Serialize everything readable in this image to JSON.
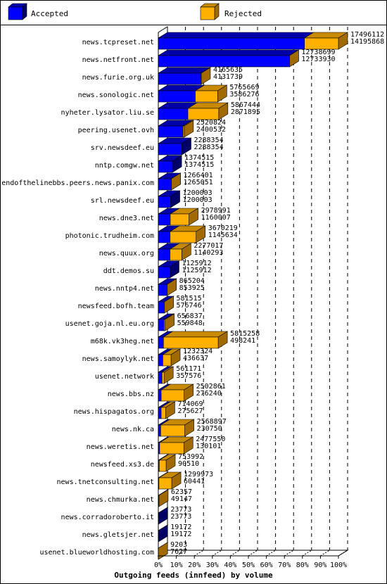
{
  "chart_data": {
    "type": "bar",
    "title": "Outgoing feeds (innfeed) by volume",
    "legend": {
      "placement": "top",
      "entries": [
        {
          "name": "Accepted",
          "color": "#0000ff"
        },
        {
          "name": "Rejected",
          "color": "#ffb000"
        }
      ]
    },
    "x_axis": {
      "range_percent": [
        0,
        100
      ],
      "ticks": [
        "0%",
        "10%",
        "20%",
        "30%",
        "40%",
        "50%",
        "60%",
        "70%",
        "80%",
        "90%",
        "100%"
      ],
      "grid": true
    },
    "series": [
      {
        "name": "Accepted",
        "color": "#0000ff"
      },
      {
        "name": "Rejected",
        "color": "#ffb000"
      }
    ],
    "rows": [
      {
        "site": "news.tcpreset.net",
        "total": 17496112,
        "accepted": 14195868
      },
      {
        "site": "news.netfront.net",
        "total": 12738699,
        "accepted": 12733930
      },
      {
        "site": "news.furie.org.uk",
        "total": 4165635,
        "accepted": 4131739
      },
      {
        "site": "news.sonologic.net",
        "total": 5765669,
        "accepted": 3586276
      },
      {
        "site": "nyheter.lysator.liu.se",
        "total": 5867444,
        "accepted": 2871895
      },
      {
        "site": "peering.usenet.ovh",
        "total": 2520824,
        "accepted": 2400532
      },
      {
        "site": "srv.newsdeef.eu",
        "total": 2288354,
        "accepted": 2288354
      },
      {
        "site": "nntp.comgw.net",
        "total": 1374515,
        "accepted": 1374515
      },
      {
        "site": "endofthelinebbs.peers.news.panix.com",
        "total": 1266401,
        "accepted": 1265051
      },
      {
        "site": "srl.newsdeef.eu",
        "total": 1200003,
        "accepted": 1200003
      },
      {
        "site": "news.dne3.net",
        "total": 2978991,
        "accepted": 1160007
      },
      {
        "site": "photonic.trudheim.com",
        "total": 3670219,
        "accepted": 1145634
      },
      {
        "site": "news.quux.org",
        "total": 2277017,
        "accepted": 1140293
      },
      {
        "site": "ddt.demos.su",
        "total": 1125912,
        "accepted": 1125912
      },
      {
        "site": "news.nntp4.net",
        "total": 865204,
        "accepted": 853925
      },
      {
        "site": "newsfeed.bofh.team",
        "total": 581515,
        "accepted": 576746
      },
      {
        "site": "usenet.goja.nl.eu.org",
        "total": 656837,
        "accepted": 559848
      },
      {
        "site": "m68k.vk3heg.net",
        "total": 5815258,
        "accepted": 498241
      },
      {
        "site": "news.samoylyk.net",
        "total": 1232324,
        "accepted": 436637
      },
      {
        "site": "usenet.network",
        "total": 561171,
        "accepted": 357576
      },
      {
        "site": "news.bbs.nz",
        "total": 2502861,
        "accepted": 276240
      },
      {
        "site": "news.hispagatos.org",
        "total": 714069,
        "accepted": 275627
      },
      {
        "site": "news.nk.ca",
        "total": 2568897,
        "accepted": 230750
      },
      {
        "site": "news.weretis.net",
        "total": 2477550,
        "accepted": 130101
      },
      {
        "site": "newsfeed.xs3.de",
        "total": 753992,
        "accepted": 90510
      },
      {
        "site": "news.tnetconsulting.net",
        "total": 1299973,
        "accepted": 60441
      },
      {
        "site": "news.chmurka.net",
        "total": 62357,
        "accepted": 49147
      },
      {
        "site": "news.corradoroberto.it",
        "total": 23773,
        "accepted": 23773
      },
      {
        "site": "news.gletsjer.net",
        "total": 19172,
        "accepted": 19172
      },
      {
        "site": "usenet.blueworldhosting.com",
        "total": 9203,
        "accepted": 7627
      }
    ]
  }
}
